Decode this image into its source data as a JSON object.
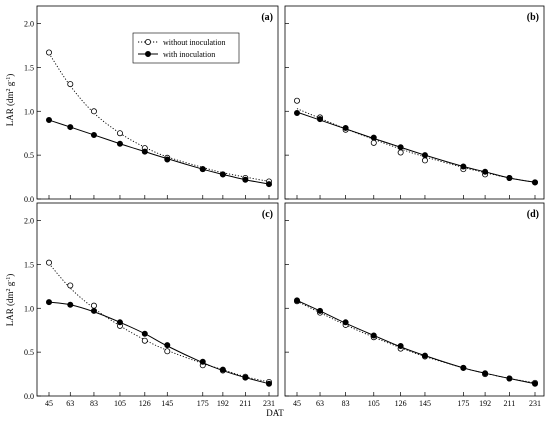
{
  "chart_data": {
    "type": "scatter",
    "layout": "2x2 panels, shared x and y axes",
    "xlabel": "DAT",
    "ylabel_main": "LAR (dm",
    "ylabel_sup1": "2",
    "ylabel_mid": " g",
    "ylabel_sup2": "-1",
    "ylabel_end": ")",
    "x_ticks": [
      45,
      63,
      83,
      105,
      126,
      145,
      175,
      192,
      211,
      231
    ],
    "y_ticks": [
      "0.0",
      "0.5",
      "1.0",
      "1.5",
      "2.0"
    ],
    "xlim": [
      45,
      231
    ],
    "ylim": [
      0,
      2.2
    ],
    "legend": {
      "placement": "top-center of panel (a)",
      "items": [
        {
          "label": "without inoculation",
          "marker": "open-circle",
          "line": "dotted"
        },
        {
          "label": "with inoculation",
          "marker": "filled-circle",
          "line": "solid"
        }
      ]
    },
    "panels": [
      {
        "tag": "(a)",
        "x": [
          45,
          63,
          83,
          105,
          126,
          145,
          175,
          192,
          211,
          231
        ],
        "series": [
          {
            "name": "without inoculation",
            "values": [
              1.67,
              1.31,
              1.0,
              0.75,
              0.58,
              0.47,
              0.34,
              0.28,
              0.24,
              0.2
            ],
            "fit": [
              1.66,
              1.29,
              0.98,
              0.75,
              0.59,
              0.48,
              0.36,
              0.3,
              0.25,
              0.2
            ]
          },
          {
            "name": "with inoculation",
            "values": [
              0.9,
              0.82,
              0.73,
              0.63,
              0.54,
              0.45,
              0.34,
              0.28,
              0.22,
              0.17
            ],
            "fit": [
              0.9,
              0.82,
              0.73,
              0.63,
              0.54,
              0.46,
              0.34,
              0.28,
              0.22,
              0.17
            ]
          }
        ]
      },
      {
        "tag": "(b)",
        "x": [
          45,
          63,
          83,
          105,
          126,
          145,
          175,
          192,
          211,
          231
        ],
        "series": [
          {
            "name": "without inoculation",
            "values": [
              1.12,
              0.93,
              0.79,
              0.64,
              0.53,
              0.44,
              0.34,
              0.28,
              0.24,
              0.19
            ],
            "fit": [
              1.03,
              0.92,
              0.8,
              0.68,
              0.57,
              0.48,
              0.36,
              0.3,
              0.24,
              0.19
            ]
          },
          {
            "name": "with inoculation",
            "values": [
              0.98,
              0.91,
              0.81,
              0.7,
              0.59,
              0.5,
              0.37,
              0.31,
              0.24,
              0.19
            ],
            "fit": [
              0.99,
              0.9,
              0.8,
              0.69,
              0.59,
              0.5,
              0.37,
              0.31,
              0.24,
              0.19
            ]
          }
        ]
      },
      {
        "tag": "(c)",
        "x": [
          45,
          63,
          83,
          105,
          126,
          145,
          175,
          192,
          211,
          231
        ],
        "series": [
          {
            "name": "without inoculation",
            "values": [
              1.52,
              1.26,
              1.03,
              0.8,
              0.63,
              0.51,
              0.35,
              0.29,
              0.22,
              0.16
            ],
            "fit": [
              1.51,
              1.23,
              1.0,
              0.8,
              0.64,
              0.52,
              0.37,
              0.3,
              0.22,
              0.16
            ]
          },
          {
            "name": "with inoculation",
            "values": [
              1.07,
              1.04,
              0.97,
              0.84,
              0.71,
              0.58,
              0.39,
              0.3,
              0.21,
              0.14
            ],
            "fit": [
              1.07,
              1.04,
              0.96,
              0.84,
              0.71,
              0.57,
              0.38,
              0.29,
              0.21,
              0.14
            ]
          }
        ]
      },
      {
        "tag": "(d)",
        "x": [
          45,
          63,
          83,
          105,
          126,
          145,
          175,
          192,
          211,
          231
        ],
        "series": [
          {
            "name": "without inoculation",
            "values": [
              1.08,
              0.95,
              0.81,
              0.67,
              0.54,
              0.45,
              0.32,
              0.25,
              0.2,
              0.15
            ],
            "fit": [
              1.08,
              0.95,
              0.81,
              0.67,
              0.55,
              0.45,
              0.32,
              0.26,
              0.2,
              0.15
            ]
          },
          {
            "name": "with inoculation",
            "values": [
              1.09,
              0.97,
              0.84,
              0.69,
              0.57,
              0.46,
              0.32,
              0.26,
              0.2,
              0.14
            ],
            "fit": [
              1.09,
              0.97,
              0.83,
              0.69,
              0.56,
              0.46,
              0.32,
              0.26,
              0.2,
              0.14
            ]
          }
        ]
      }
    ]
  }
}
